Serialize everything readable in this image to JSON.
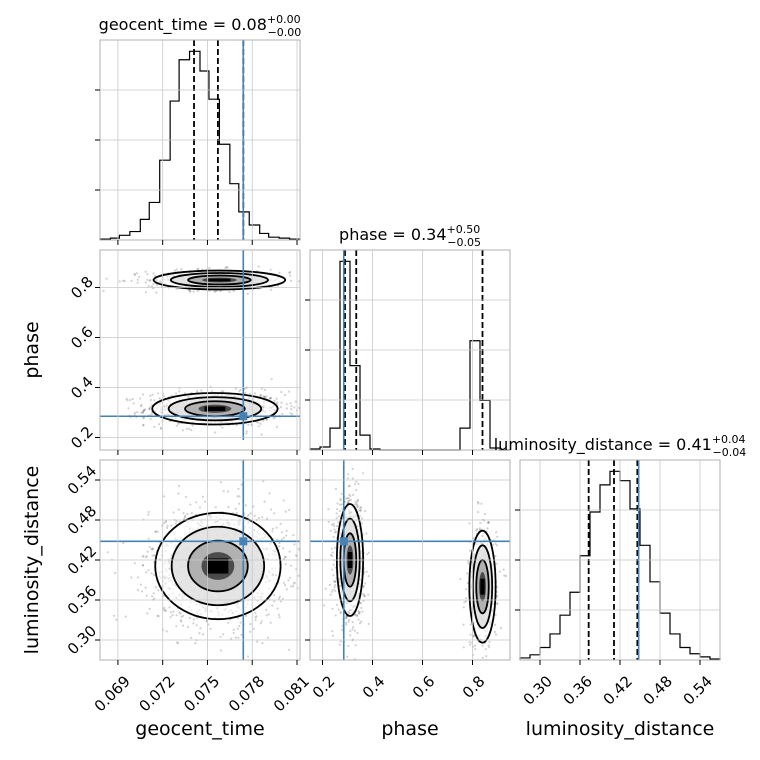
{
  "chart_data": {
    "type": "corner",
    "parameters": [
      "geocent_time",
      "phase",
      "luminosity_distance"
    ],
    "truth_color": "#4682b4",
    "panels": {
      "geocent_time": {
        "title": "geocent_time = 0.08",
        "title_upper": "+0.00",
        "title_lower": "−0.00",
        "range": [
          0.0678,
          0.0812
        ],
        "ticks": [
          0.069,
          0.072,
          0.075,
          0.078,
          0.081
        ],
        "tick_labels": [
          "0.069",
          "0.072",
          "0.075",
          "0.078",
          "0.081"
        ],
        "quantiles": [
          0.0741,
          0.0757,
          0.0774
        ],
        "truth": 0.0774,
        "hist_edges": [
          0.0678,
          0.0685,
          0.0691,
          0.0698,
          0.0705,
          0.0711,
          0.0718,
          0.0725,
          0.0731,
          0.0738,
          0.0745,
          0.0751,
          0.0758,
          0.0765,
          0.0771,
          0.0778,
          0.0785,
          0.0791,
          0.0798,
          0.0805,
          0.0812
        ],
        "hist_values": [
          1,
          2,
          5,
          9,
          22,
          40,
          85,
          148,
          192,
          201,
          180,
          150,
          102,
          60,
          30,
          16,
          7,
          3,
          2,
          1
        ]
      },
      "phase": {
        "title": "phase = 0.34",
        "title_upper": "+0.50",
        "title_lower": "−0.05",
        "range": [
          0.15,
          0.95
        ],
        "ticks": [
          0.2,
          0.4,
          0.6,
          0.8
        ],
        "tick_labels": [
          "0.2",
          "0.4",
          "0.6",
          "0.8"
        ],
        "quantiles": [
          0.29,
          0.335,
          0.84
        ],
        "truth": 0.285,
        "hist_edges": [
          0.15,
          0.19,
          0.23,
          0.27,
          0.31,
          0.35,
          0.39,
          0.43,
          0.47,
          0.51,
          0.55,
          0.59,
          0.63,
          0.67,
          0.71,
          0.75,
          0.79,
          0.83,
          0.87,
          0.91,
          0.95
        ],
        "hist_values": [
          1,
          3,
          22,
          190,
          85,
          15,
          1,
          0,
          0,
          0,
          0,
          0,
          0,
          0,
          0,
          22,
          110,
          50,
          2,
          0
        ]
      },
      "luminosity_distance": {
        "title": "luminosity_distance = 0.41",
        "title_upper": "+0.04",
        "title_lower": "−0.04",
        "range": [
          0.27,
          0.57
        ],
        "ticks": [
          0.3,
          0.36,
          0.42,
          0.48,
          0.54
        ],
        "tick_labels": [
          "0.30",
          "0.36",
          "0.42",
          "0.48",
          "0.54"
        ],
        "quantiles": [
          0.373,
          0.411,
          0.446
        ],
        "truth": 0.448,
        "hist_edges": [
          0.27,
          0.285,
          0.3,
          0.315,
          0.33,
          0.345,
          0.36,
          0.375,
          0.39,
          0.405,
          0.42,
          0.435,
          0.45,
          0.465,
          0.48,
          0.495,
          0.51,
          0.525,
          0.54,
          0.555,
          0.57
        ],
        "hist_values": [
          2,
          5,
          12,
          25,
          43,
          65,
          100,
          142,
          168,
          181,
          172,
          145,
          110,
          75,
          45,
          25,
          12,
          6,
          3,
          1
        ]
      }
    },
    "pairs": [
      {
        "x": "geocent_time",
        "y": "phase",
        "modes": [
          {
            "cx": 0.0755,
            "cy": 0.315,
            "sx": 0.002,
            "sy": 0.03,
            "w": 0.65
          },
          {
            "cx": 0.0758,
            "cy": 0.83,
            "sx": 0.0021,
            "sy": 0.018,
            "w": 0.35
          }
        ]
      },
      {
        "x": "geocent_time",
        "y": "luminosity_distance",
        "modes": [
          {
            "cx": 0.0757,
            "cy": 0.411,
            "sx": 0.002,
            "sy": 0.038,
            "w": 1.0
          }
        ]
      },
      {
        "x": "phase",
        "y": "luminosity_distance",
        "modes": [
          {
            "cx": 0.31,
            "cy": 0.42,
            "sx": 0.025,
            "sy": 0.04,
            "w": 0.62
          },
          {
            "cx": 0.84,
            "cy": 0.38,
            "sx": 0.025,
            "sy": 0.04,
            "w": 0.38
          }
        ]
      }
    ],
    "xlabel": "",
    "ylabel": ""
  }
}
